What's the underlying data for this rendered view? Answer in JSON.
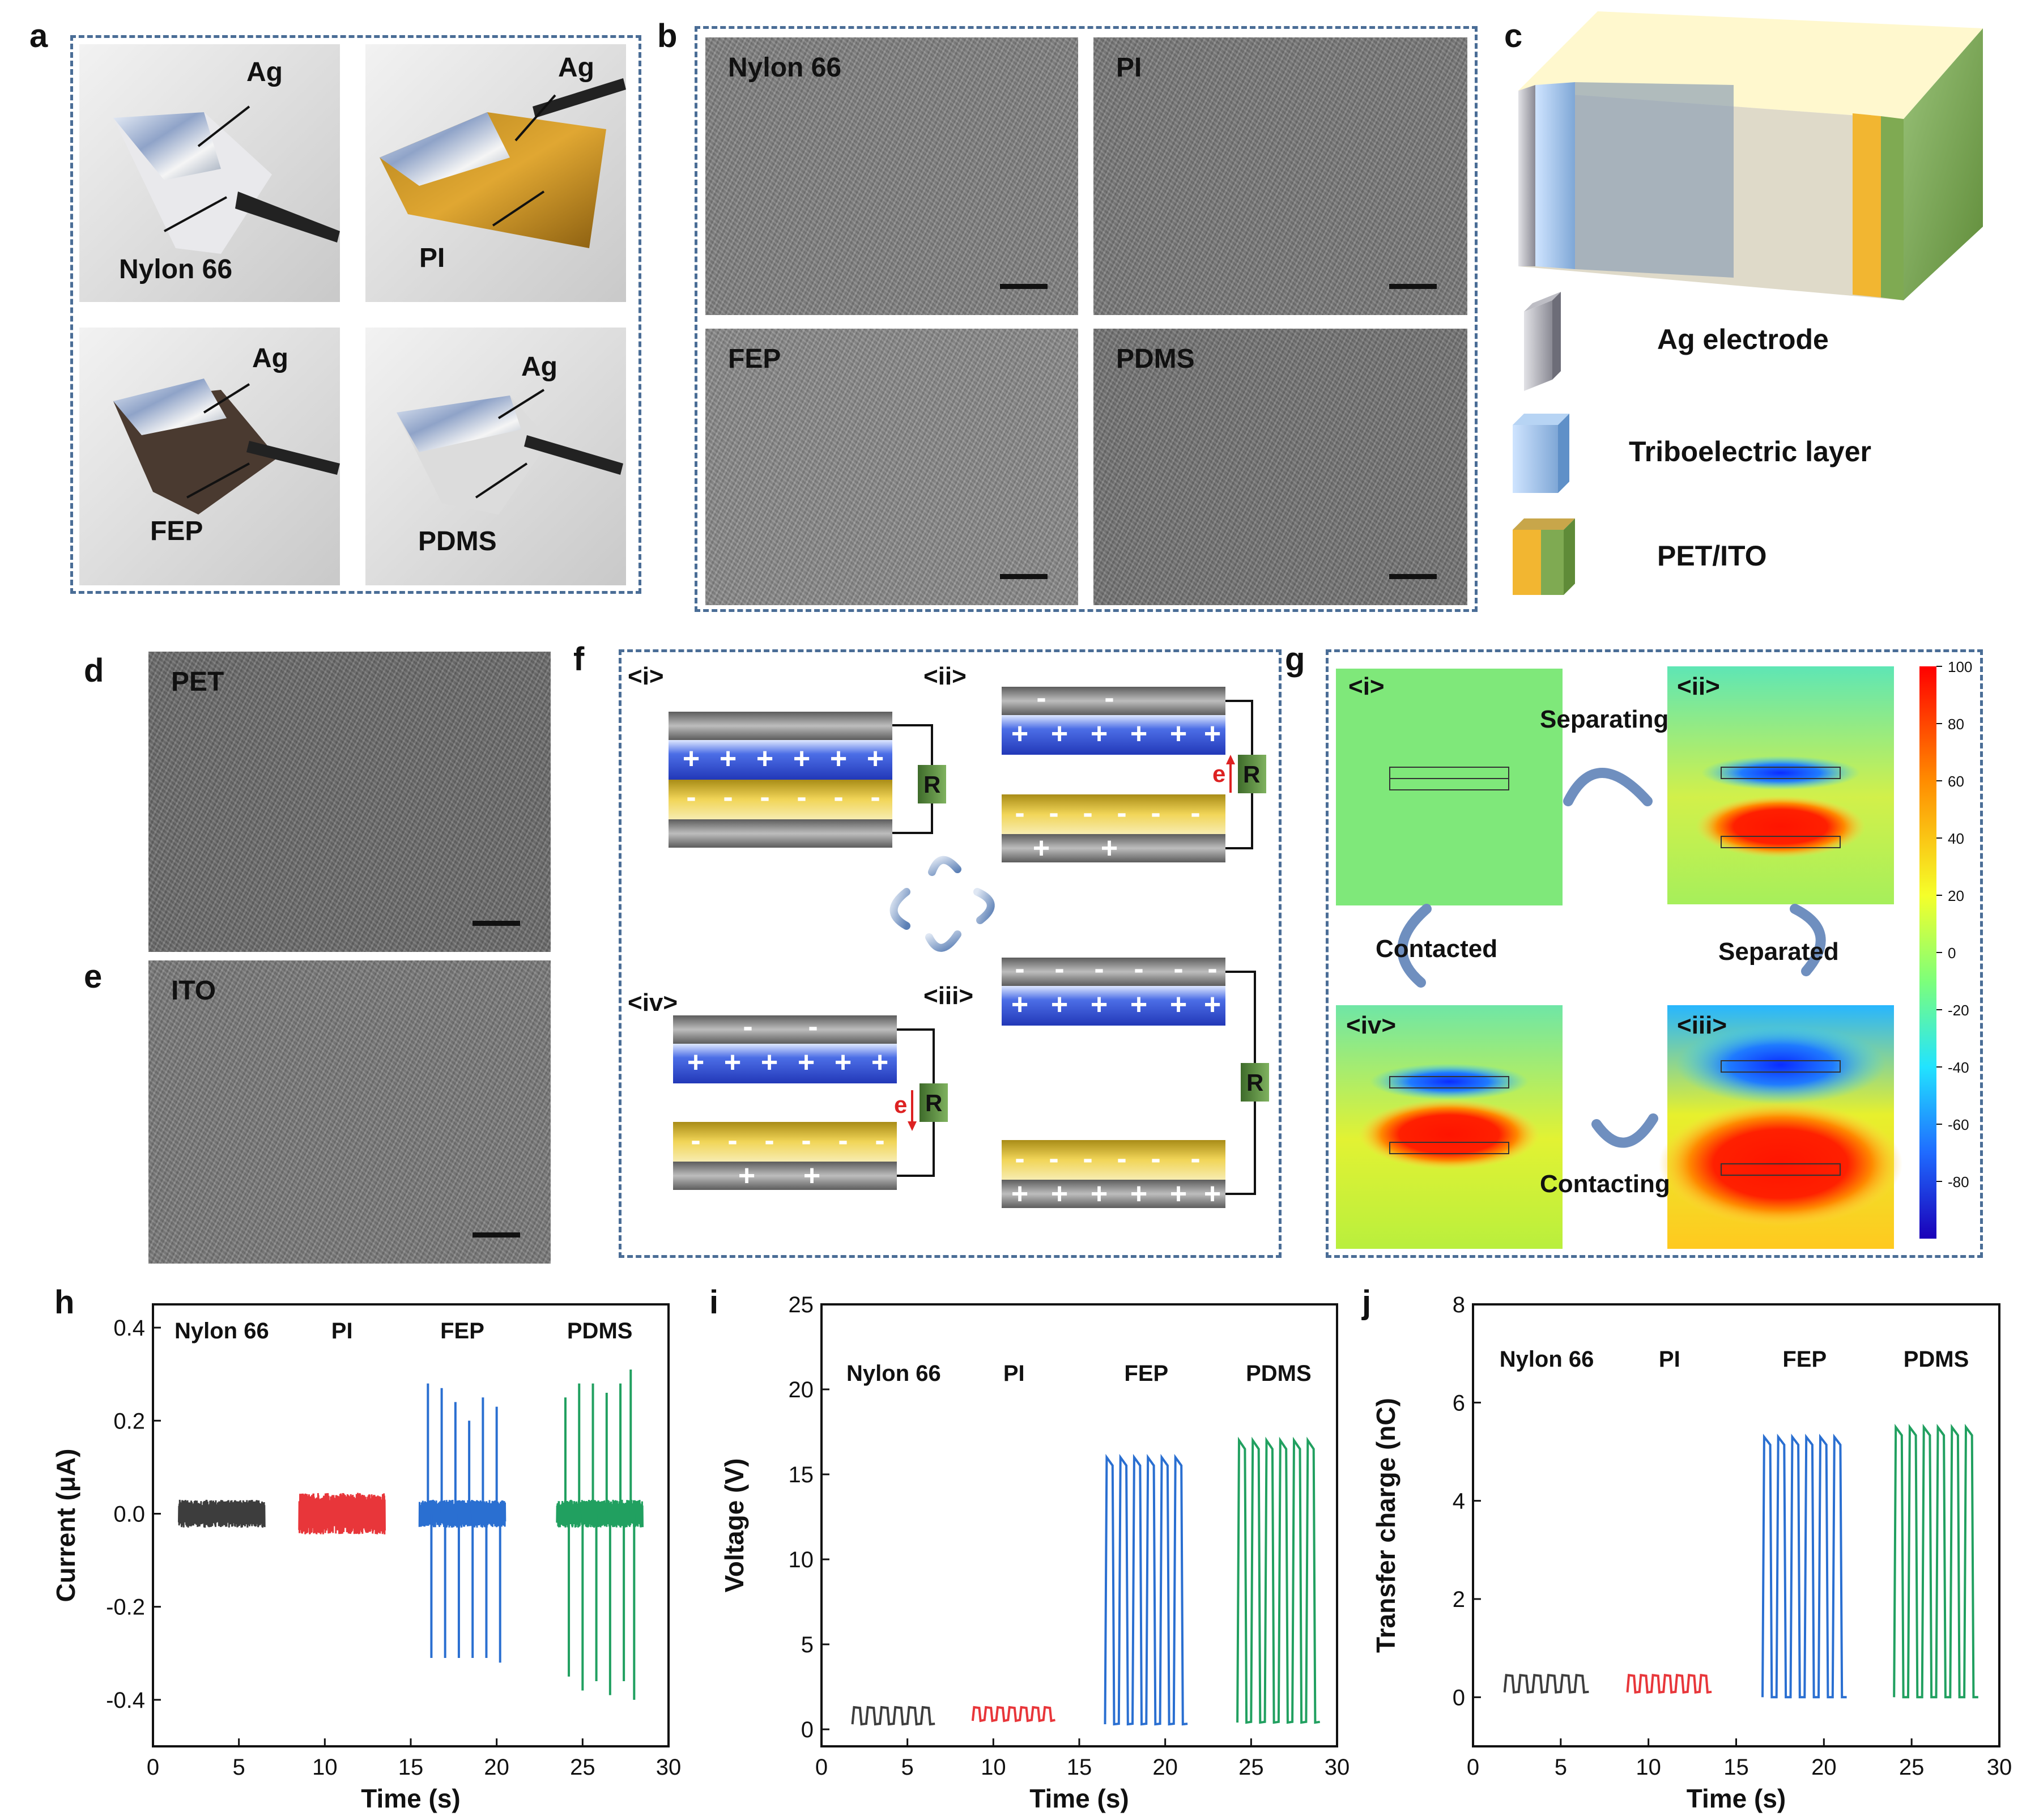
{
  "labels": {
    "a": "a",
    "b": "b",
    "c": "c",
    "d": "d",
    "e": "e",
    "f": "f",
    "g": "g",
    "h": "h",
    "i": "i",
    "j": "j"
  },
  "panel_a": {
    "ag": "Ag",
    "materials": [
      "Nylon 66",
      "PI",
      "FEP",
      "PDMS"
    ]
  },
  "panel_b": {
    "titles": [
      "Nylon 66",
      "PI",
      "FEP",
      "PDMS"
    ]
  },
  "panel_c": {
    "legend": [
      "Ag electrode",
      "Triboelectric layer",
      "PET/ITO"
    ]
  },
  "panel_d": {
    "title": "PET"
  },
  "panel_e": {
    "title": "ITO"
  },
  "panel_f": {
    "stages": [
      "<i>",
      "<ii>",
      "<iii>",
      "<iv>"
    ],
    "resistor": "R",
    "electron": "e",
    "plus": "+",
    "minus": "-"
  },
  "panel_g": {
    "stages": [
      "<i>",
      "<ii>",
      "<iii>",
      "<iv>"
    ],
    "arrows": [
      "Separating",
      "Separated",
      "Contacting",
      "Contacted"
    ],
    "colorbar_ticks": [
      "100",
      "80",
      "60",
      "40",
      "20",
      "0",
      "-20",
      "-40",
      "-60",
      "-80"
    ]
  },
  "colors": {
    "nylon": "#3d3d3d",
    "pi": "#e8363a",
    "fep": "#2a6fd1",
    "pdms": "#21a060",
    "axis": "#111111",
    "dash": "#4a6d96"
  },
  "chart_data": [
    {
      "type": "line",
      "title": "h",
      "xlabel": "Time (s)",
      "ylabel": "Current (μA)",
      "xlim": [
        0,
        30
      ],
      "ylim": [
        -0.5,
        0.45
      ],
      "xticks": [
        "0",
        "5",
        "10",
        "15",
        "20",
        "25",
        "30"
      ],
      "yticks": [
        "-0.4",
        "-0.2",
        "0.0",
        "0.2",
        "0.4"
      ],
      "series": [
        {
          "name": "Nylon 66",
          "x_range": [
            1.5,
            6.5
          ],
          "baseline": 0.0,
          "noise": 0.03,
          "peaks_pos": [],
          "peaks_neg": []
        },
        {
          "name": "PI",
          "x_range": [
            8.5,
            13.5
          ],
          "baseline": 0.0,
          "noise": 0.045,
          "peaks_pos": [],
          "peaks_neg": []
        },
        {
          "name": "FEP",
          "x_range": [
            15.5,
            20.5
          ],
          "baseline": 0.0,
          "noise": 0.03,
          "peaks_pos": [
            [
              16.0,
              0.28
            ],
            [
              16.8,
              0.27
            ],
            [
              17.6,
              0.24
            ],
            [
              18.4,
              0.2
            ],
            [
              19.2,
              0.25
            ],
            [
              20.0,
              0.23
            ]
          ],
          "peaks_neg": [
            [
              16.2,
              -0.31
            ],
            [
              17.0,
              -0.31
            ],
            [
              17.8,
              -0.31
            ],
            [
              18.6,
              -0.31
            ],
            [
              19.4,
              -0.31
            ],
            [
              20.2,
              -0.32
            ]
          ]
        },
        {
          "name": "PDMS",
          "x_range": [
            23.5,
            28.5
          ],
          "baseline": 0.0,
          "noise": 0.03,
          "peaks_pos": [
            [
              24.0,
              0.25
            ],
            [
              24.8,
              0.28
            ],
            [
              25.6,
              0.28
            ],
            [
              26.4,
              0.26
            ],
            [
              27.2,
              0.28
            ],
            [
              27.8,
              0.31
            ]
          ],
          "peaks_neg": [
            [
              24.2,
              -0.35
            ],
            [
              25.0,
              -0.38
            ],
            [
              25.8,
              -0.36
            ],
            [
              26.6,
              -0.39
            ],
            [
              27.4,
              -0.36
            ],
            [
              28.0,
              -0.4
            ]
          ]
        }
      ]
    },
    {
      "type": "line",
      "title": "i",
      "xlabel": "Time (s)",
      "ylabel": "Voltage (V)",
      "xlim": [
        0,
        30
      ],
      "ylim": [
        -1,
        25
      ],
      "xticks": [
        "0",
        "5",
        "10",
        "15",
        "20",
        "25",
        "30"
      ],
      "yticks": [
        "0",
        "5",
        "10",
        "15",
        "20",
        "25"
      ],
      "series": [
        {
          "name": "Nylon 66",
          "x_range": [
            1.8,
            6.6
          ],
          "low": 0.3,
          "high": 1.3,
          "cycles": 6
        },
        {
          "name": "PI",
          "x_range": [
            8.8,
            13.6
          ],
          "low": 0.5,
          "high": 1.3,
          "cycles": 7
        },
        {
          "name": "FEP",
          "x_range": [
            16.5,
            21.3
          ],
          "low": 0.3,
          "high": 16.0,
          "cycles": 6
        },
        {
          "name": "PDMS",
          "x_range": [
            24.2,
            29.0
          ],
          "low": 0.4,
          "high": 17.0,
          "cycles": 6
        }
      ]
    },
    {
      "type": "line",
      "title": "j",
      "xlabel": "Time (s)",
      "ylabel": "Transfer charge (nC)",
      "xlim": [
        0,
        30
      ],
      "ylim": [
        -1,
        8
      ],
      "xticks": [
        "0",
        "5",
        "10",
        "15",
        "20",
        "25",
        "30"
      ],
      "yticks": [
        "0",
        "2",
        "4",
        "6",
        "8"
      ],
      "series": [
        {
          "name": "Nylon 66",
          "x_range": [
            1.8,
            6.6
          ],
          "low": 0.1,
          "high": 0.45,
          "cycles": 6
        },
        {
          "name": "PI",
          "x_range": [
            8.8,
            13.6
          ],
          "low": 0.1,
          "high": 0.45,
          "cycles": 7
        },
        {
          "name": "FEP",
          "x_range": [
            16.5,
            21.3
          ],
          "low": 0.0,
          "high": 5.3,
          "cycles": 6
        },
        {
          "name": "PDMS",
          "x_range": [
            24.0,
            28.8
          ],
          "low": 0.0,
          "high": 5.5,
          "cycles": 6
        }
      ]
    }
  ]
}
